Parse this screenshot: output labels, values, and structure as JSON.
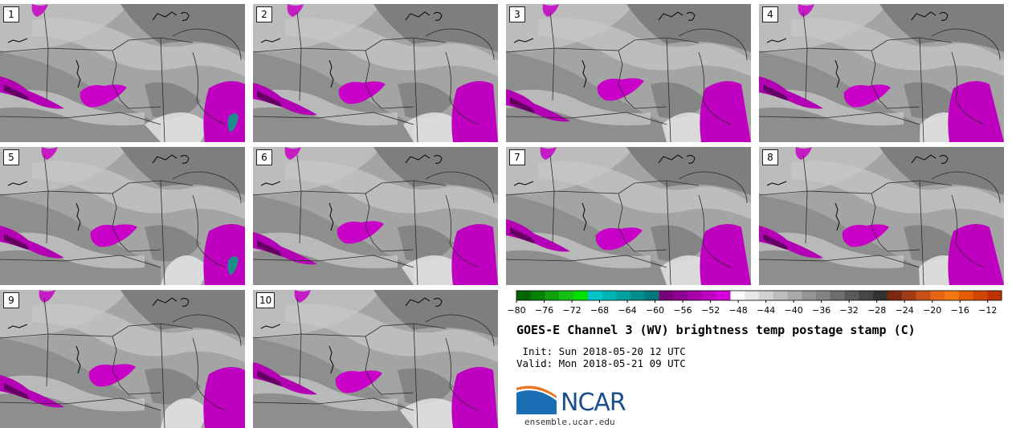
{
  "panels": [
    "1",
    "2",
    "3",
    "4",
    "5",
    "6",
    "7",
    "8",
    "9",
    "10"
  ],
  "colorbar": {
    "min": -80,
    "max": -10,
    "tick_labels": [
      "−80",
      "−76",
      "−72",
      "−68",
      "−64",
      "−60",
      "−56",
      "−52",
      "−48",
      "−44",
      "−40",
      "−36",
      "−32",
      "−28",
      "−24",
      "−20",
      "−16",
      "−12"
    ],
    "tick_values": [
      -80,
      -76,
      -72,
      -68,
      -64,
      -60,
      -56,
      -52,
      -48,
      -44,
      -40,
      -36,
      -32,
      -28,
      -24,
      -20,
      -16,
      -12
    ],
    "colors": [
      "#006400",
      "#087f08",
      "#10a010",
      "#14c014",
      "#00e000",
      "#00c8c8",
      "#00b4b4",
      "#00a0a0",
      "#008c8c",
      "#007878",
      "#780078",
      "#900090",
      "#a800a8",
      "#c000c0",
      "#d800d8",
      "#ffffff",
      "#e6e6e6",
      "#d2d2d2",
      "#bebebe",
      "#aaaaaa",
      "#969696",
      "#828282",
      "#6e6e6e",
      "#5a5a5a",
      "#464646",
      "#323232",
      "#7a2a10",
      "#a03c14",
      "#c85018",
      "#e66414",
      "#f07814",
      "#e65a00",
      "#d24600",
      "#be3200"
    ]
  },
  "title": "GOES-E Channel 3 (WV) brightness temp postage stamp (C)",
  "init": " Init: Sun 2018-05-20 12 UTC",
  "valid": "Valid: Mon 2018-05-21 09 UTC",
  "logo": {
    "text": "NCAR",
    "color": "#1a4f8c",
    "swoosh": "#e87722"
  },
  "site": "ensemble.ucar.edu"
}
